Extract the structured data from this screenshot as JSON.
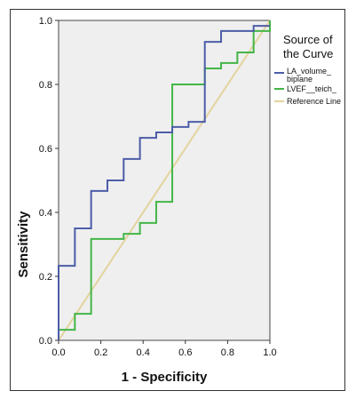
{
  "chart_data": {
    "type": "line",
    "title": "",
    "xlabel": "1 - Specificity",
    "ylabel": "Sensitivity",
    "xlim": [
      0,
      1
    ],
    "ylim": [
      0,
      1
    ],
    "xticks": [
      "0.0",
      "0.2",
      "0.4",
      "0.6",
      "0.8",
      "1.0"
    ],
    "yticks": [
      "0.0",
      "0.2",
      "0.4",
      "0.6",
      "0.8",
      "1.0"
    ],
    "background": "#efefef",
    "grid": false,
    "legend": {
      "title_lines": [
        "Source of",
        "the Curve"
      ],
      "position": "right",
      "entries": [
        {
          "label_lines": [
            "LA_volume_",
            "biplane"
          ],
          "color": "#4c5da8"
        },
        {
          "label_lines": [
            "LVEF__teich_"
          ],
          "color": "#44b548"
        },
        {
          "label_lines": [
            "Reference Line"
          ],
          "color": "#e3d39d"
        }
      ]
    },
    "series": [
      {
        "name": "LA_volume_biplane",
        "color": "#4c5da8",
        "x": [
          0,
          0,
          0.077,
          0.077,
          0.154,
          0.154,
          0.231,
          0.231,
          0.308,
          0.308,
          0.385,
          0.385,
          0.462,
          0.462,
          0.538,
          0.538,
          0.615,
          0.615,
          0.692,
          0.692,
          0.769,
          0.769,
          0.923,
          0.923,
          1.0
        ],
        "y": [
          0,
          0.233,
          0.233,
          0.35,
          0.35,
          0.467,
          0.467,
          0.5,
          0.5,
          0.567,
          0.567,
          0.633,
          0.633,
          0.65,
          0.65,
          0.667,
          0.667,
          0.683,
          0.683,
          0.933,
          0.933,
          0.967,
          0.967,
          0.983,
          0.983
        ]
      },
      {
        "name": "LVEF__teich_",
        "color": "#44b548",
        "x": [
          0,
          0,
          0.077,
          0.077,
          0.154,
          0.154,
          0.308,
          0.308,
          0.385,
          0.385,
          0.462,
          0.462,
          0.538,
          0.538,
          0.692,
          0.692,
          0.769,
          0.769,
          0.846,
          0.846,
          0.923,
          0.923,
          1.0,
          1.0
        ],
        "y": [
          0,
          0.033,
          0.033,
          0.083,
          0.083,
          0.317,
          0.317,
          0.333,
          0.333,
          0.367,
          0.367,
          0.433,
          0.433,
          0.8,
          0.8,
          0.85,
          0.85,
          0.867,
          0.867,
          0.9,
          0.9,
          0.967,
          0.967,
          1.0
        ]
      },
      {
        "name": "Reference Line",
        "color": "#e3d39d",
        "x": [
          0,
          1
        ],
        "y": [
          0,
          1
        ]
      }
    ]
  }
}
